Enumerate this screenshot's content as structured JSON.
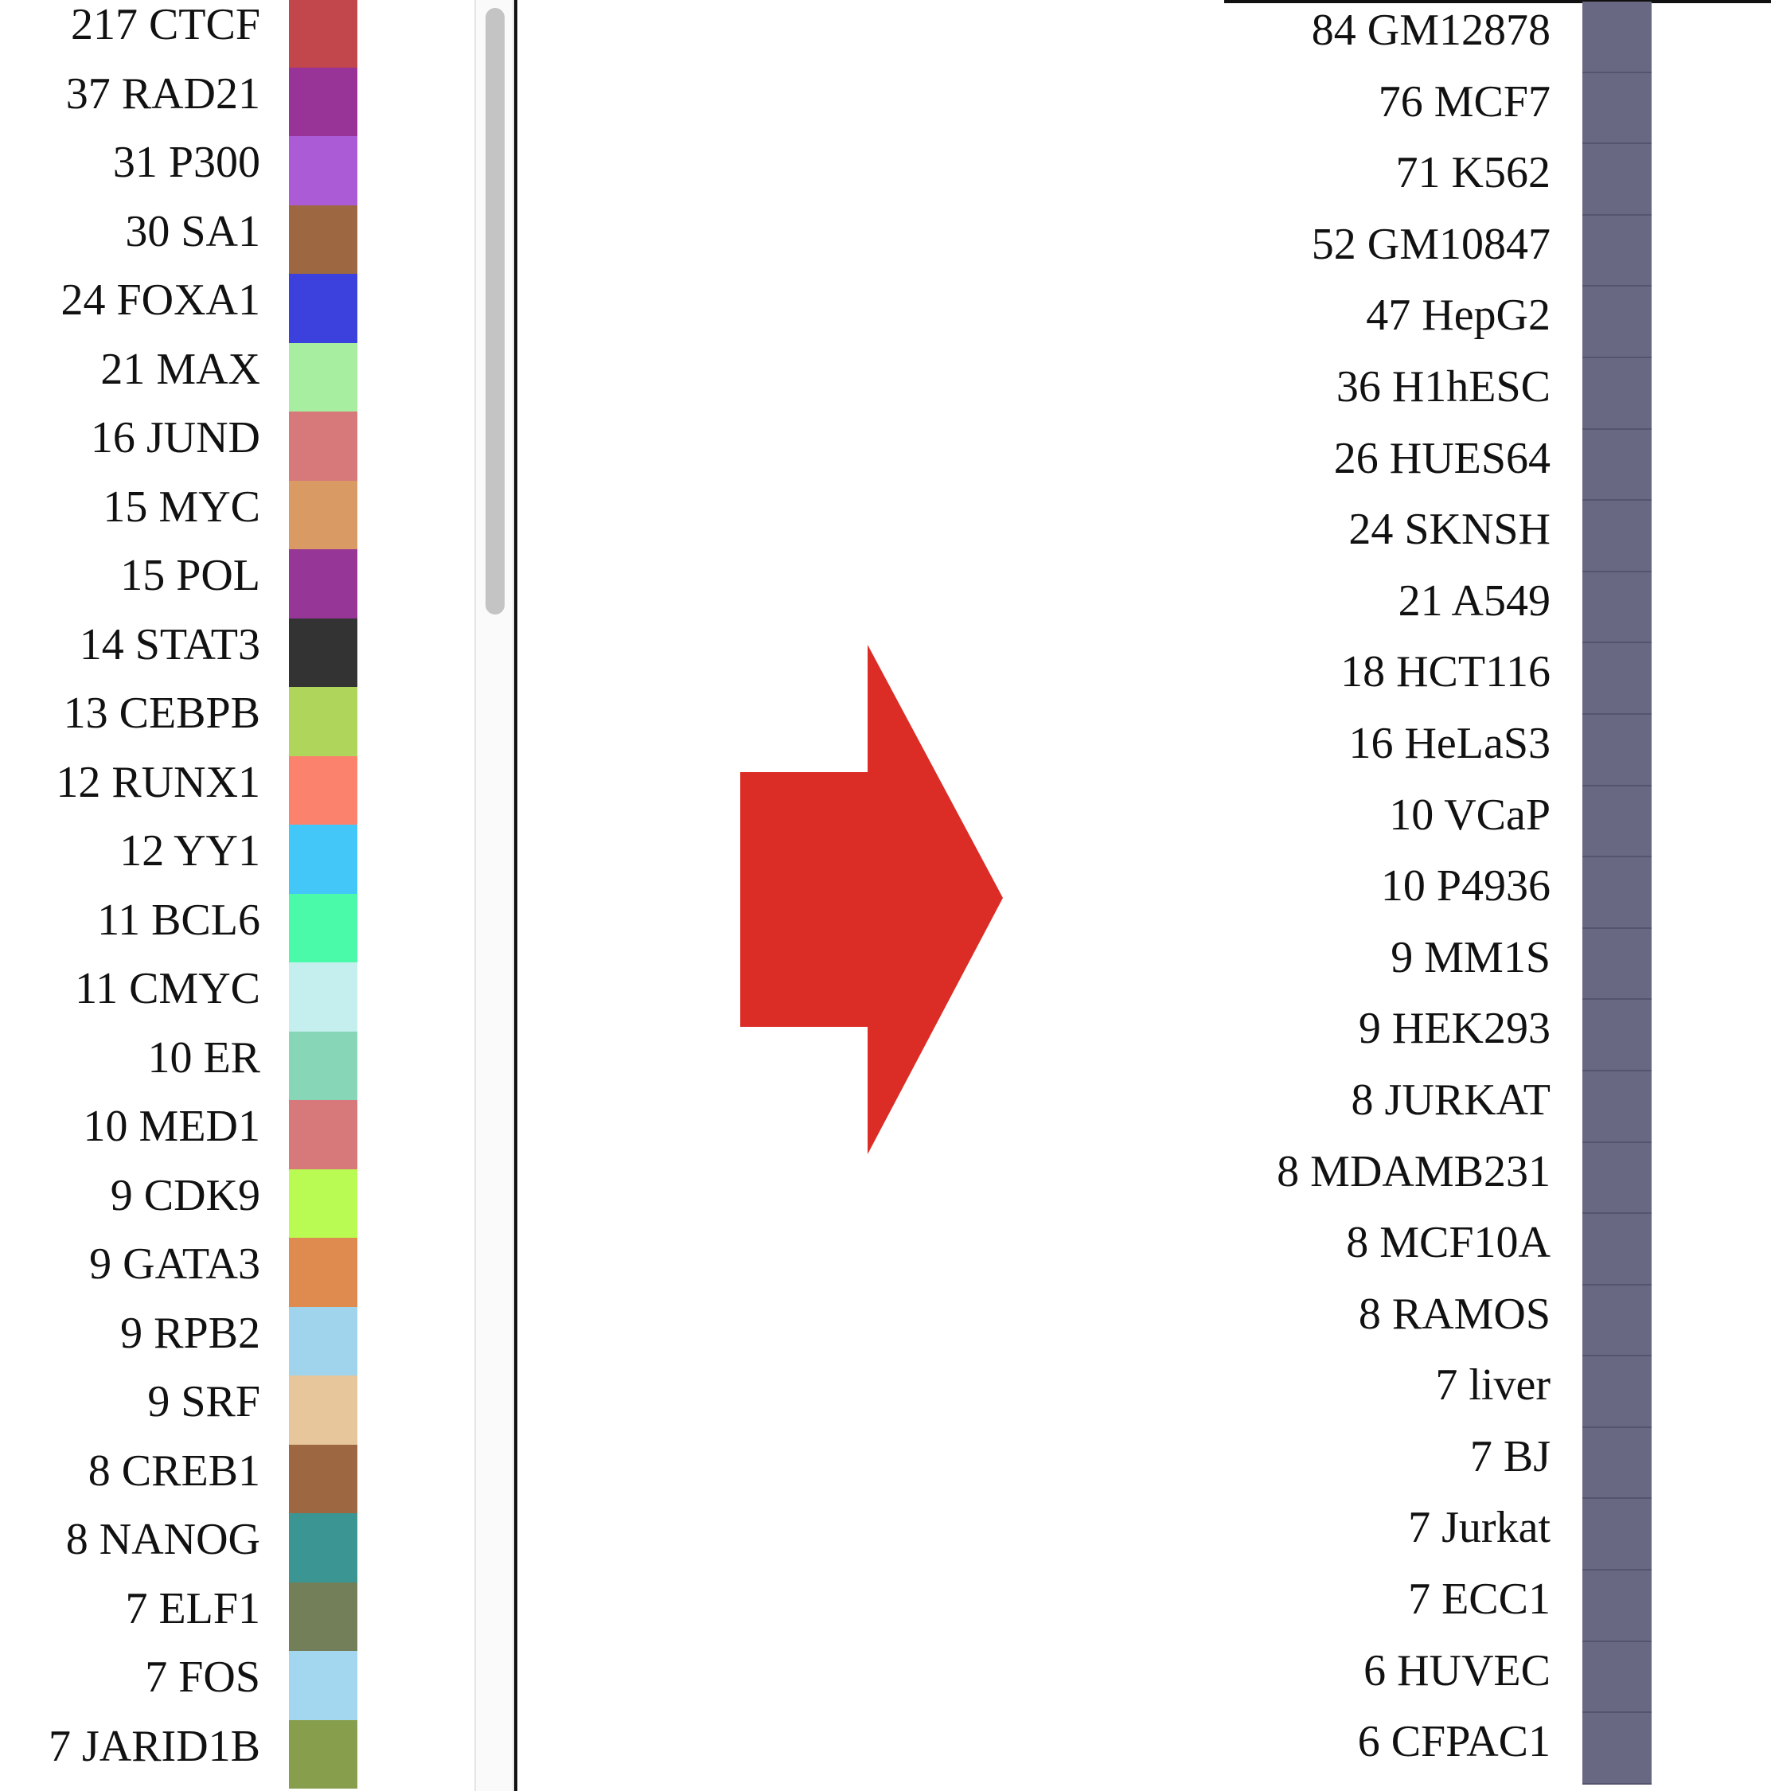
{
  "left_legend": {
    "items": [
      {
        "label": "217 CTCF",
        "color": "#c1474c"
      },
      {
        "label": "37 RAD21",
        "color": "#983497"
      },
      {
        "label": "31 P300",
        "color": "#ab5bd6"
      },
      {
        "label": "30 SA1",
        "color": "#9d6741"
      },
      {
        "label": "24 FOXA1",
        "color": "#3c40dd"
      },
      {
        "label": "21 MAX",
        "color": "#a7eea0"
      },
      {
        "label": "16 JUND",
        "color": "#d7787a"
      },
      {
        "label": "15 MYC",
        "color": "#d99a63"
      },
      {
        "label": "15 POL",
        "color": "#963797"
      },
      {
        "label": "14 STAT3",
        "color": "#333333"
      },
      {
        "label": "13 CEBPB",
        "color": "#afd55a"
      },
      {
        "label": "12 RUNX1",
        "color": "#fb836e"
      },
      {
        "label": "12 YY1",
        "color": "#43c7f8"
      },
      {
        "label": "11 BCL6",
        "color": "#4afaa9"
      },
      {
        "label": "11 CMYC",
        "color": "#c4efee"
      },
      {
        "label": "10 ER",
        "color": "#88d6b8"
      },
      {
        "label": "10 MED1",
        "color": "#d7787a"
      },
      {
        "label": "9 CDK9",
        "color": "#bafb53"
      },
      {
        "label": "9 GATA3",
        "color": "#df8a4e"
      },
      {
        "label": "9 RPB2",
        "color": "#a0d4ec"
      },
      {
        "label": "9 SRF",
        "color": "#e8c69b"
      },
      {
        "label": "8 CREB1",
        "color": "#9d6741"
      },
      {
        "label": "8 NANOG",
        "color": "#3b9593"
      },
      {
        "label": "7 ELF1",
        "color": "#737f58"
      },
      {
        "label": "7 FOS",
        "color": "#a3d7ef"
      },
      {
        "label": "7 JARID1B",
        "color": "#879f4d"
      }
    ]
  },
  "arrow": {
    "color": "#dc2c26",
    "direction": "right"
  },
  "right_legend": {
    "swatch_color": "#686883",
    "items": [
      {
        "label": "84 GM12878"
      },
      {
        "label": "76 MCF7"
      },
      {
        "label": "71 K562"
      },
      {
        "label": "52 GM10847"
      },
      {
        "label": "47 HepG2"
      },
      {
        "label": "36 H1hESC"
      },
      {
        "label": "26 HUES64"
      },
      {
        "label": "24 SKNSH"
      },
      {
        "label": "21 A549"
      },
      {
        "label": "18 HCT116"
      },
      {
        "label": "16 HeLaS3"
      },
      {
        "label": "10 VCaP"
      },
      {
        "label": "10 P4936"
      },
      {
        "label": "9 MM1S"
      },
      {
        "label": "9 HEK293"
      },
      {
        "label": "8 JURKAT"
      },
      {
        "label": "8 MDAMB231"
      },
      {
        "label": "8 MCF10A"
      },
      {
        "label": "8 RAMOS"
      },
      {
        "label": "7 liver"
      },
      {
        "label": "7 BJ"
      },
      {
        "label": "7 Jurkat"
      },
      {
        "label": "7 ECC1"
      },
      {
        "label": "6 HUVEC"
      },
      {
        "label": "6 CFPAC1"
      }
    ]
  }
}
